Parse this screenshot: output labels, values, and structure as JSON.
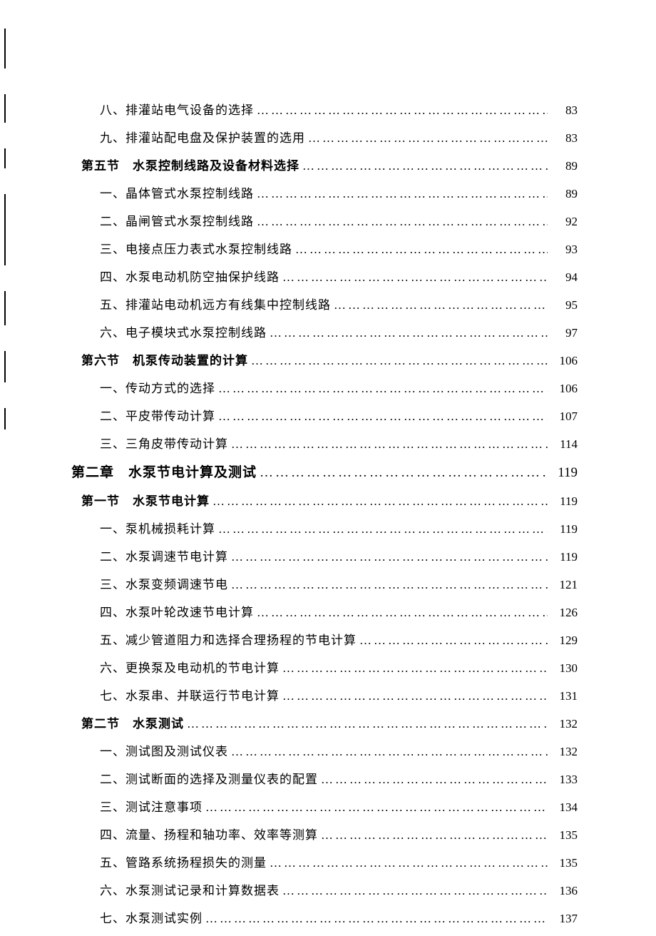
{
  "dots": "……………………………………………………………………………………",
  "toc": [
    {
      "indent": 2,
      "style": "item",
      "label": "八、排灌站电气设备的选择",
      "page": "83"
    },
    {
      "indent": 2,
      "style": "item",
      "label": "九、排灌站配电盘及保护装置的选用",
      "page": "83"
    },
    {
      "indent": 1,
      "style": "section",
      "label": "第五节　水泵控制线路及设备材料选择",
      "page": "89"
    },
    {
      "indent": 2,
      "style": "item",
      "label": "一、晶体管式水泵控制线路",
      "page": "89"
    },
    {
      "indent": 2,
      "style": "item",
      "label": "二、晶闸管式水泵控制线路",
      "page": "92"
    },
    {
      "indent": 2,
      "style": "item",
      "label": "三、电接点压力表式水泵控制线路",
      "page": "93"
    },
    {
      "indent": 2,
      "style": "item",
      "label": "四、水泵电动机防空抽保护线路",
      "page": "94"
    },
    {
      "indent": 2,
      "style": "item",
      "label": "五、排灌站电动机远方有线集中控制线路",
      "page": "95"
    },
    {
      "indent": 2,
      "style": "item",
      "label": "六、电子模块式水泵控制线路",
      "page": "97"
    },
    {
      "indent": 1,
      "style": "section",
      "label": "第六节　机泵传动装置的计算",
      "page": "106"
    },
    {
      "indent": 2,
      "style": "item",
      "label": "一、传动方式的选择",
      "page": "106"
    },
    {
      "indent": 2,
      "style": "item",
      "label": "二、平皮带传动计算",
      "page": "107"
    },
    {
      "indent": 2,
      "style": "item",
      "label": "三、三角皮带传动计算",
      "page": "114"
    },
    {
      "indent": 0,
      "style": "chapter",
      "label": "第二章　水泵节电计算及测试",
      "page": "119"
    },
    {
      "indent": 1,
      "style": "section",
      "label": "第一节　水泵节电计算",
      "page": "119"
    },
    {
      "indent": 2,
      "style": "item",
      "label": "一、泵机械损耗计算",
      "page": "119"
    },
    {
      "indent": 2,
      "style": "item",
      "label": "二、水泵调速节电计算",
      "page": "119"
    },
    {
      "indent": 2,
      "style": "item",
      "label": "三、水泵变频调速节电",
      "page": "121"
    },
    {
      "indent": 2,
      "style": "item",
      "label": "四、水泵叶轮改速节电计算",
      "page": "126"
    },
    {
      "indent": 2,
      "style": "item",
      "label": "五、减少管道阻力和选择合理扬程的节电计算",
      "page": "129"
    },
    {
      "indent": 2,
      "style": "item",
      "label": "六、更换泵及电动机的节电计算",
      "page": "130"
    },
    {
      "indent": 2,
      "style": "item",
      "label": "七、水泵串、并联运行节电计算",
      "page": "131"
    },
    {
      "indent": 1,
      "style": "section",
      "label": "第二节　水泵测试",
      "page": "132"
    },
    {
      "indent": 2,
      "style": "item",
      "label": "一、测试图及测试仪表",
      "page": "132"
    },
    {
      "indent": 2,
      "style": "item",
      "label": "二、测试断面的选择及测量仪表的配置",
      "page": "133"
    },
    {
      "indent": 2,
      "style": "item",
      "label": "三、测试注意事项",
      "page": "134"
    },
    {
      "indent": 2,
      "style": "item",
      "label": "四、流量、扬程和轴功率、效率等测算",
      "page": "135"
    },
    {
      "indent": 2,
      "style": "item",
      "label": "五、管路系统扬程损失的测量",
      "page": "135"
    },
    {
      "indent": 2,
      "style": "item",
      "label": "六、水泵测试记录和计算数据表",
      "page": "136"
    },
    {
      "indent": 2,
      "style": "item",
      "label": "七、水泵测试实例",
      "page": "137"
    }
  ],
  "edgeMarks": [
    56,
    40,
    28,
    100,
    48,
    44,
    30
  ]
}
